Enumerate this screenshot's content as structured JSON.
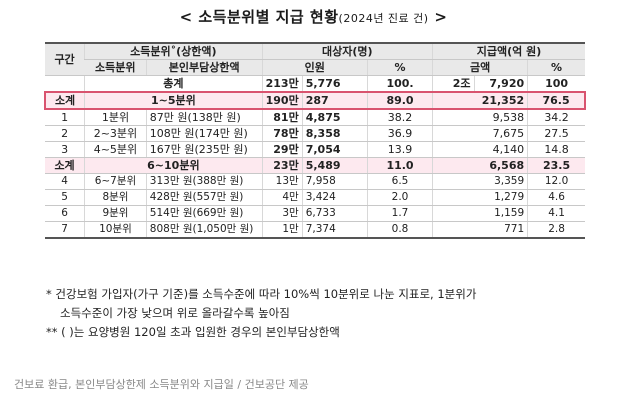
{
  "title": {
    "main": "< 소득분위별 지급 현황",
    "sub": "(2024년 진료 건)",
    "end": " >"
  },
  "headers": {
    "group": "구간",
    "income_group": "소득분위˚(상한액)",
    "income_tier": "소득분위",
    "cap": "본인부담상한액",
    "recipients": "대상자(명)",
    "people": "인원",
    "pct": "%",
    "amount_group": "지급액(억 원)",
    "amount": "금액",
    "pct2": "%"
  },
  "total": {
    "label": "총계",
    "people_a": "213만",
    "people_b": "5,776",
    "pct": "100.",
    "amt_a": "2조",
    "amt_b": "7,920",
    "amt_pct": "100"
  },
  "subtotal1": {
    "group": "소계",
    "label": "1~5분위",
    "people_a": "190만",
    "people_b": "287",
    "pct": "89.0",
    "amount": "21,352",
    "amt_pct": "76.5"
  },
  "rows_a": [
    {
      "group": "1",
      "tier": "1분위",
      "cap": "87만 원(138만 원)",
      "people_a": "81만",
      "people_b": "4,875",
      "pct": "38.2",
      "amount": "9,538",
      "amt_pct": "34.2"
    },
    {
      "group": "2",
      "tier": "2~3분위",
      "cap": "108만 원(174만 원)",
      "people_a": "78만",
      "people_b": "8,358",
      "pct": "36.9",
      "amount": "7,675",
      "amt_pct": "27.5"
    },
    {
      "group": "3",
      "tier": "4~5분위",
      "cap": "167만 원(235만 원)",
      "people_a": "29만",
      "people_b": "7,054",
      "pct": "13.9",
      "amount": "4,140",
      "amt_pct": "14.8"
    }
  ],
  "subtotal2": {
    "group": "소계",
    "label": "6~10분위",
    "people_a": "23만",
    "people_b": "5,489",
    "pct": "11.0",
    "amount": "6,568",
    "amt_pct": "23.5"
  },
  "rows_b": [
    {
      "group": "4",
      "tier": "6~7분위",
      "cap": "313만 원(388만 원)",
      "people_a": "13만",
      "people_b": "7,958",
      "pct": "6.5",
      "amount": "3,359",
      "amt_pct": "12.0"
    },
    {
      "group": "5",
      "tier": "8분위",
      "cap": "428만 원(557만 원)",
      "people_a": "4만",
      "people_b": "3,424",
      "pct": "2.0",
      "amount": "1,279",
      "amt_pct": "4.6"
    },
    {
      "group": "6",
      "tier": "9분위",
      "cap": "514만 원(669만 원)",
      "people_a": "3만",
      "people_b": "6,733",
      "pct": "1.7",
      "amount": "1,159",
      "amt_pct": "4.1"
    },
    {
      "group": "7",
      "tier": "10분위",
      "cap": "808만 원(1,050만 원)",
      "people_a": "1만",
      "people_b": "7,374",
      "pct": "0.8",
      "amount": "771",
      "amt_pct": "2.8"
    }
  ],
  "notes": {
    "n1a": "* 건강보험 가입자(가구 기준)를 소득수준에 따라 10%씩 10분위로 나눈 지표로, 1분위가",
    "n1b": "소득수준이 가장 낮으며 위로 올라갈수록 높아짐",
    "n2": "** ( )는 요양병원 120일 초과 입원한 경우의 본인부담상한액"
  },
  "caption": "건보료 환급, 본인부담상한제 소득분위와 지급일 / 건보공단 제공"
}
